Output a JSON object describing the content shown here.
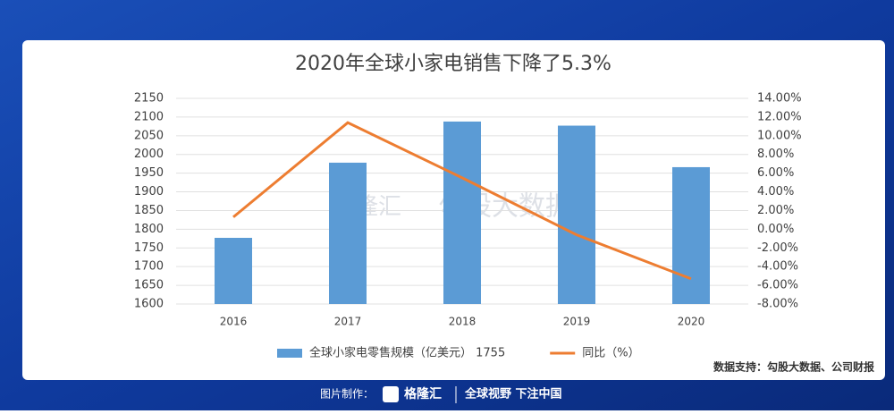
{
  "chart_data": {
    "type": "combo",
    "title": "2020年全球小家电销售下降了5.3%",
    "categories": [
      "2016",
      "2017",
      "2018",
      "2019",
      "2020"
    ],
    "series": [
      {
        "name": "全球小家电零售规模（亿美元） 1755",
        "type": "bar",
        "color": "#5b9bd5",
        "values": [
          1777,
          1978,
          2088,
          2077,
          1966
        ]
      },
      {
        "name": "同比（%）",
        "type": "line",
        "axis": "y2",
        "color": "#ed7d31",
        "values": [
          1.3,
          11.4,
          5.5,
          -0.6,
          -5.3
        ]
      }
    ],
    "ylim": [
      1600,
      2150
    ],
    "yticks": [
      1600,
      1650,
      1700,
      1750,
      1800,
      1850,
      1900,
      1950,
      2000,
      2050,
      2100,
      2150
    ],
    "y2lim": [
      -8,
      14
    ],
    "y2ticks": [
      {
        "value": -8,
        "label": "-8.00%"
      },
      {
        "value": -6,
        "label": "-6.00%"
      },
      {
        "value": -4,
        "label": "-4.00%"
      },
      {
        "value": -2,
        "label": "-2.00%"
      },
      {
        "value": 0,
        "label": "0.00%"
      },
      {
        "value": 2,
        "label": "2.00%"
      },
      {
        "value": 4,
        "label": "4.00%"
      },
      {
        "value": 6,
        "label": "6.00%"
      },
      {
        "value": 8,
        "label": "8.00%"
      },
      {
        "value": 10,
        "label": "10.00%"
      },
      {
        "value": 12,
        "label": "12.00%"
      },
      {
        "value": 14,
        "label": "14.00%"
      }
    ],
    "grid": true
  },
  "source": "数据支持：勾股大数据、公司财报",
  "watermark": [
    "格隆汇",
    "勾股大数据"
  ],
  "footer": {
    "label": "图片制作：",
    "brand": "格隆汇",
    "slogan": "全球视野 下注中国"
  }
}
